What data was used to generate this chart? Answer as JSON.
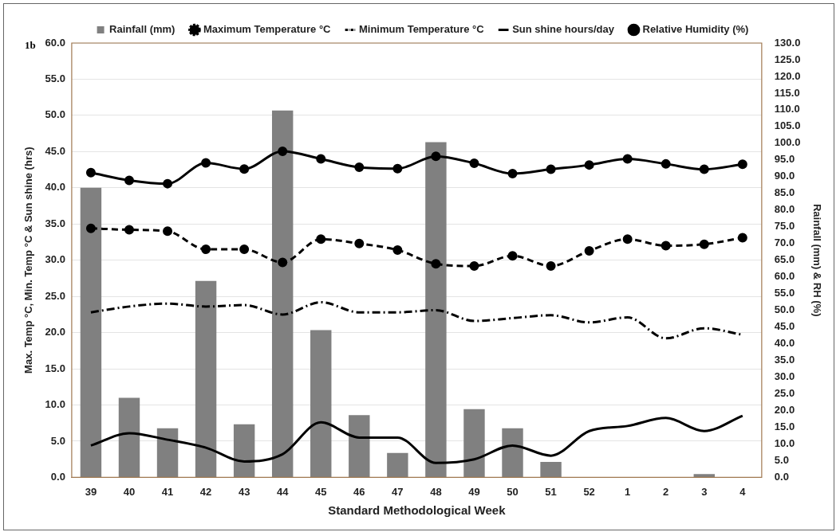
{
  "chart_data": {
    "type": "line",
    "xlabel": "Standard Methodological Week",
    "ylabel": "Max. Temp °C, Min. Temp °C & Sun shine (hrs)",
    "y2label": "Rainfall (mm) & RH (%)",
    "annotations": [
      "1b"
    ],
    "categories": [
      "39",
      "40",
      "41",
      "42",
      "43",
      "44",
      "45",
      "46",
      "47",
      "48",
      "49",
      "50",
      "51",
      "52",
      "1",
      "2",
      "3",
      "4"
    ],
    "series": [
      {
        "name": "Rainfall (mm)",
        "type": "bar",
        "axis": "y2",
        "color": "#808080",
        "values": [
          86.7,
          23.8,
          14.7,
          58.8,
          15.9,
          109.8,
          44.1,
          18.6,
          7.3,
          100.3,
          20.4,
          14.7,
          4.6,
          0,
          0,
          0,
          1.0,
          0
        ]
      },
      {
        "name": "Maximum Temperature °C",
        "color": "#000000",
        "line_style": "dashed",
        "marker": "circle",
        "values": [
          34.4,
          34.2,
          34.0,
          31.5,
          31.5,
          29.7,
          32.9,
          32.3,
          31.4,
          29.5,
          29.2,
          30.6,
          29.2,
          31.3,
          32.9,
          32.0,
          32.2,
          33.1
        ]
      },
      {
        "name": "Minimum Temperature °C",
        "color": "#000000",
        "line_style": "dashdot",
        "marker": "none",
        "values": [
          22.8,
          23.6,
          24.0,
          23.6,
          23.8,
          22.5,
          24.2,
          22.8,
          22.8,
          23.1,
          21.6,
          22.0,
          22.4,
          21.4,
          22.1,
          19.2,
          20.6,
          19.7
        ]
      },
      {
        "name": "Sun shine hours/day",
        "color": "#000000",
        "line_style": "solid",
        "marker": "none",
        "values": [
          4.4,
          6.1,
          5.2,
          4.1,
          2.2,
          3.2,
          7.6,
          5.5,
          5.5,
          2.0,
          2.5,
          4.4,
          3.0,
          6.4,
          7.1,
          8.2,
          6.4,
          8.5
        ]
      },
      {
        "name": "Relative Humidity (%)",
        "axis": "y2",
        "color": "#000000",
        "line_style": "solid",
        "marker": "circle",
        "values": [
          91.2,
          88.9,
          87.9,
          94.1,
          92.3,
          97.6,
          95.3,
          92.8,
          92.4,
          96.1,
          94.0,
          90.9,
          92.2,
          93.5,
          95.3,
          93.8,
          92.2,
          93.7
        ]
      }
    ],
    "ylim": [
      0,
      60
    ],
    "yticks": [
      {
        "value": 0,
        "label": "0.0"
      },
      {
        "value": 5,
        "label": "5.0"
      },
      {
        "value": 10,
        "label": "10.0"
      },
      {
        "value": 15,
        "label": "15.0"
      },
      {
        "value": 20,
        "label": "20.0"
      },
      {
        "value": 25,
        "label": "25.0"
      },
      {
        "value": 30,
        "label": "30.0"
      },
      {
        "value": 35,
        "label": "35.0"
      },
      {
        "value": 40,
        "label": "40.0"
      },
      {
        "value": 45,
        "label": "45.0"
      },
      {
        "value": 50,
        "label": "50.0"
      },
      {
        "value": 55,
        "label": "55.0"
      },
      {
        "value": 60,
        "label": "60.0"
      }
    ],
    "y2lim": [
      0,
      130
    ],
    "y2ticks": [
      {
        "value": 0,
        "label": "0.0"
      },
      {
        "value": 5,
        "label": "5.0"
      },
      {
        "value": 10,
        "label": "10.0"
      },
      {
        "value": 15,
        "label": "15.0"
      },
      {
        "value": 20,
        "label": "20.0"
      },
      {
        "value": 25,
        "label": "25.0"
      },
      {
        "value": 30,
        "label": "30.0"
      },
      {
        "value": 35,
        "label": "35.0"
      },
      {
        "value": 40,
        "label": "40.0"
      },
      {
        "value": 45,
        "label": "45.0"
      },
      {
        "value": 50,
        "label": "50.0"
      },
      {
        "value": 55,
        "label": "55.0"
      },
      {
        "value": 60,
        "label": "60.0"
      },
      {
        "value": 65,
        "label": "65.0"
      },
      {
        "value": 70,
        "label": "70.0"
      },
      {
        "value": 75,
        "label": "75.0"
      },
      {
        "value": 80,
        "label": "80.0"
      },
      {
        "value": 85,
        "label": "85.0"
      },
      {
        "value": 90,
        "label": "90.0"
      },
      {
        "value": 95,
        "label": "95.0"
      },
      {
        "value": 100,
        "label": "100.0"
      },
      {
        "value": 105,
        "label": "105.0"
      },
      {
        "value": 110,
        "label": "110.0"
      },
      {
        "value": 115,
        "label": "115.0"
      },
      {
        "value": 120,
        "label": "120.0"
      },
      {
        "value": 125,
        "label": "125.0"
      },
      {
        "value": 130,
        "label": "130.0"
      }
    ],
    "grid": "y",
    "legend": "top"
  }
}
